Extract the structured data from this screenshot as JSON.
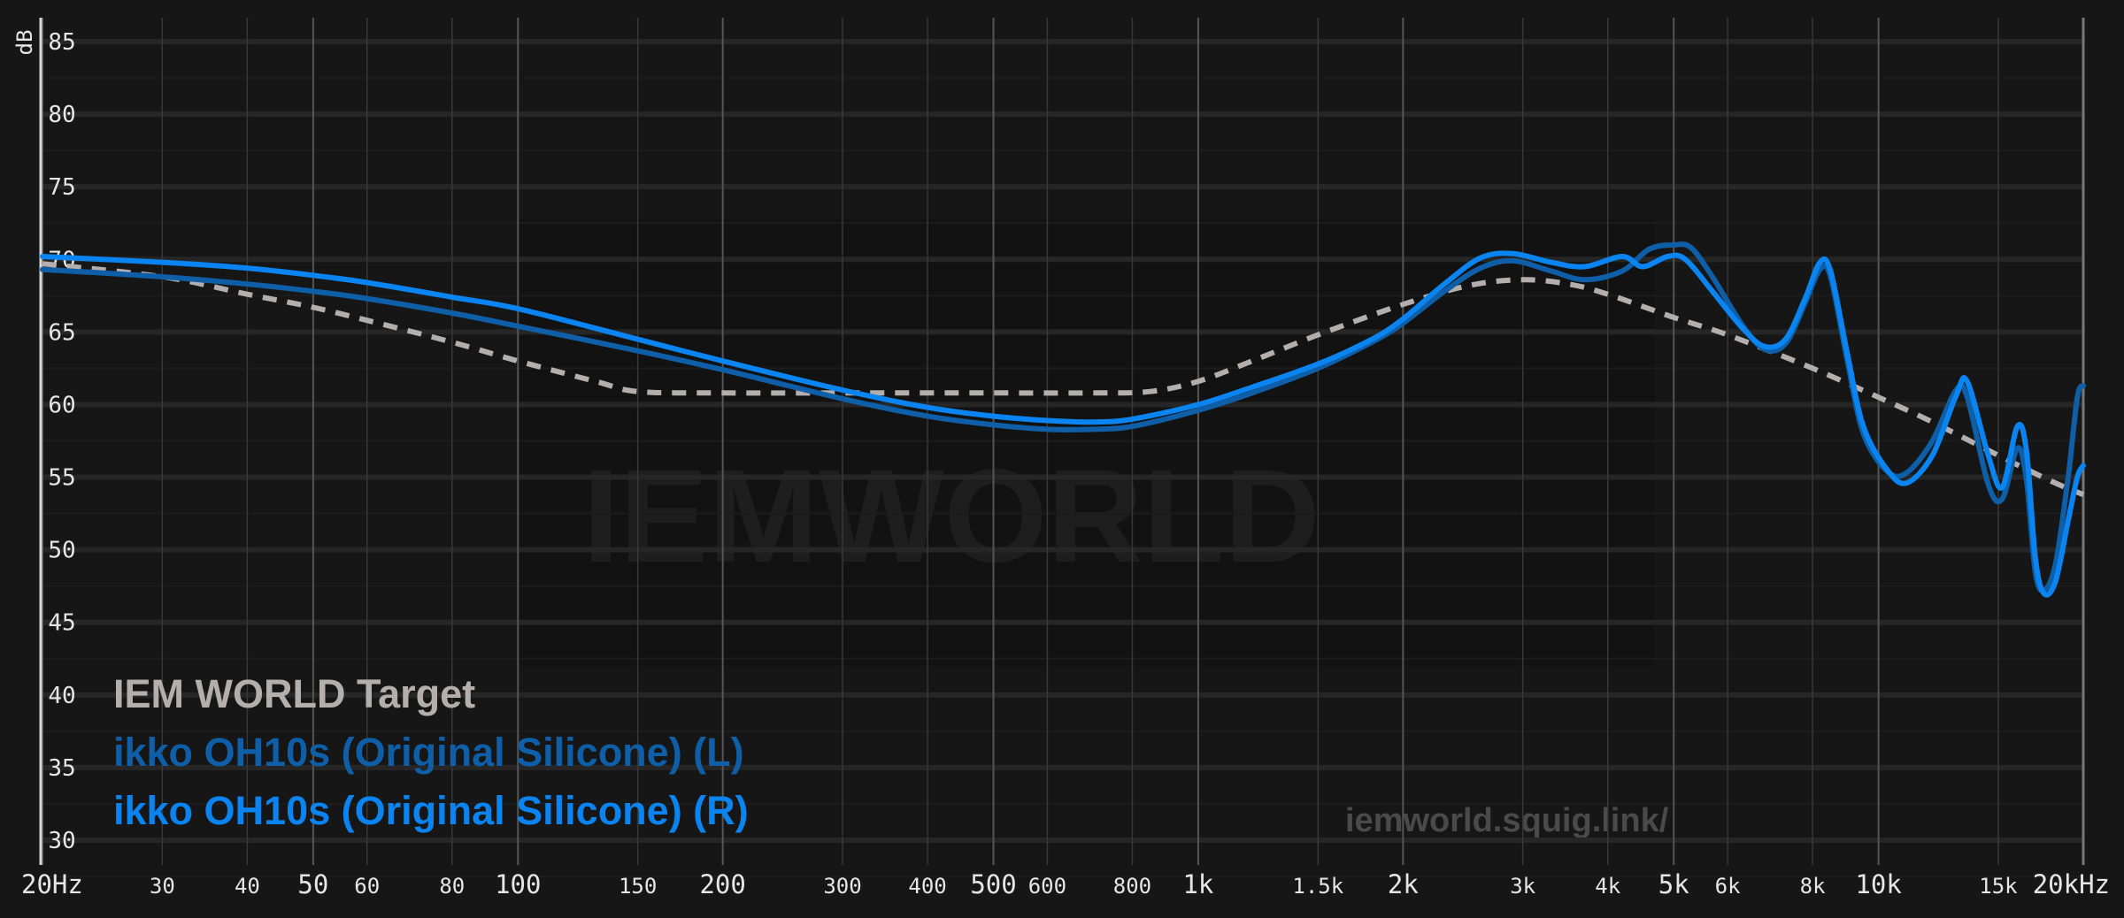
{
  "chart_data": {
    "type": "line",
    "xscale": "log",
    "xlim": [
      20,
      20000
    ],
    "ylim": [
      30,
      86
    ],
    "ylabel": "dB",
    "grid": true,
    "legend_position": "bottom-left",
    "y_ticks": [
      85,
      80,
      75,
      70,
      65,
      60,
      55,
      50,
      45,
      40,
      35,
      30
    ],
    "x_ticks": [
      {
        "v": 20,
        "label": "20Hz",
        "major": true
      },
      {
        "v": 30,
        "label": "30",
        "major": false
      },
      {
        "v": 40,
        "label": "40",
        "major": false
      },
      {
        "v": 50,
        "label": "50",
        "major": true
      },
      {
        "v": 60,
        "label": "60",
        "major": false
      },
      {
        "v": 80,
        "label": "80",
        "major": false
      },
      {
        "v": 100,
        "label": "100",
        "major": true
      },
      {
        "v": 150,
        "label": "150",
        "major": false
      },
      {
        "v": 200,
        "label": "200",
        "major": true
      },
      {
        "v": 300,
        "label": "300",
        "major": false
      },
      {
        "v": 400,
        "label": "400",
        "major": false
      },
      {
        "v": 500,
        "label": "500",
        "major": true
      },
      {
        "v": 600,
        "label": "600",
        "major": false
      },
      {
        "v": 800,
        "label": "800",
        "major": false
      },
      {
        "v": 1000,
        "label": "1k",
        "major": true
      },
      {
        "v": 1500,
        "label": "1.5k",
        "major": false
      },
      {
        "v": 2000,
        "label": "2k",
        "major": true
      },
      {
        "v": 3000,
        "label": "3k",
        "major": false
      },
      {
        "v": 4000,
        "label": "4k",
        "major": false
      },
      {
        "v": 5000,
        "label": "5k",
        "major": true
      },
      {
        "v": 6000,
        "label": "6k",
        "major": false
      },
      {
        "v": 8000,
        "label": "8k",
        "major": false
      },
      {
        "v": 10000,
        "label": "10k",
        "major": true
      },
      {
        "v": 15000,
        "label": "15k",
        "major": false
      },
      {
        "v": 20000,
        "label": "20kHz",
        "major": true
      }
    ],
    "series": [
      {
        "name": "IEM WORLD Target",
        "color": "#b4aeae",
        "dash": true,
        "points": [
          [
            20,
            69.7
          ],
          [
            30,
            68.8
          ],
          [
            40,
            67.6
          ],
          [
            50,
            66.7
          ],
          [
            60,
            65.8
          ],
          [
            80,
            64.3
          ],
          [
            100,
            63.0
          ],
          [
            130,
            61.6
          ],
          [
            150,
            60.9
          ],
          [
            200,
            60.8
          ],
          [
            300,
            60.8
          ],
          [
            500,
            60.8
          ],
          [
            700,
            60.8
          ],
          [
            850,
            60.9
          ],
          [
            1000,
            61.6
          ],
          [
            1200,
            63.0
          ],
          [
            1500,
            64.8
          ],
          [
            2000,
            66.9
          ],
          [
            2500,
            68.2
          ],
          [
            3000,
            68.6
          ],
          [
            3500,
            68.3
          ],
          [
            4000,
            67.6
          ],
          [
            5000,
            66.0
          ],
          [
            6000,
            64.8
          ],
          [
            8000,
            62.5
          ],
          [
            10000,
            60.5
          ],
          [
            12000,
            58.8
          ],
          [
            15000,
            56.5
          ],
          [
            18000,
            54.7
          ],
          [
            20000,
            53.8
          ]
        ]
      },
      {
        "name": "ikko OH10s (Original Silicone) (L)",
        "color": "#0e5fa8",
        "dash": false,
        "points": [
          [
            20,
            69.3
          ],
          [
            30,
            68.8
          ],
          [
            40,
            68.3
          ],
          [
            50,
            67.8
          ],
          [
            60,
            67.3
          ],
          [
            80,
            66.3
          ],
          [
            100,
            65.4
          ],
          [
            150,
            63.7
          ],
          [
            200,
            62.4
          ],
          [
            300,
            60.4
          ],
          [
            400,
            59.2
          ],
          [
            500,
            58.6
          ],
          [
            600,
            58.3
          ],
          [
            700,
            58.3
          ],
          [
            800,
            58.5
          ],
          [
            1000,
            59.6
          ],
          [
            1200,
            60.8
          ],
          [
            1500,
            62.5
          ],
          [
            1800,
            64.3
          ],
          [
            2000,
            65.6
          ],
          [
            2300,
            67.8
          ],
          [
            2600,
            69.4
          ],
          [
            2900,
            69.9
          ],
          [
            3300,
            69.2
          ],
          [
            3700,
            68.6
          ],
          [
            4200,
            69.2
          ],
          [
            4600,
            70.7
          ],
          [
            5000,
            71.0
          ],
          [
            5300,
            70.8
          ],
          [
            5700,
            68.8
          ],
          [
            6300,
            65.5
          ],
          [
            6800,
            63.8
          ],
          [
            7300,
            64.2
          ],
          [
            7800,
            67.0
          ],
          [
            8200,
            69.3
          ],
          [
            8500,
            68.8
          ],
          [
            9000,
            63.0
          ],
          [
            9500,
            58.0
          ],
          [
            10300,
            55.4
          ],
          [
            11000,
            55.3
          ],
          [
            12000,
            57.5
          ],
          [
            13000,
            61.0
          ],
          [
            13500,
            60.5
          ],
          [
            14500,
            54.5
          ],
          [
            15200,
            53.5
          ],
          [
            16000,
            57.0
          ],
          [
            16500,
            54.8
          ],
          [
            17000,
            48.5
          ],
          [
            17500,
            47.2
          ],
          [
            18200,
            49.0
          ],
          [
            19000,
            55.0
          ],
          [
            19600,
            60.5
          ],
          [
            20000,
            61.3
          ]
        ]
      },
      {
        "name": "ikko OH10s (Original Silicone) (R)",
        "color": "#0a84f0",
        "dash": false,
        "points": [
          [
            20,
            70.2
          ],
          [
            30,
            69.8
          ],
          [
            40,
            69.4
          ],
          [
            50,
            68.9
          ],
          [
            60,
            68.4
          ],
          [
            80,
            67.4
          ],
          [
            100,
            66.6
          ],
          [
            150,
            64.5
          ],
          [
            200,
            63.0
          ],
          [
            300,
            61.0
          ],
          [
            400,
            59.8
          ],
          [
            500,
            59.2
          ],
          [
            600,
            58.9
          ],
          [
            700,
            58.8
          ],
          [
            800,
            59.0
          ],
          [
            1000,
            60.0
          ],
          [
            1200,
            61.2
          ],
          [
            1500,
            62.8
          ],
          [
            1800,
            64.5
          ],
          [
            2000,
            65.9
          ],
          [
            2300,
            68.3
          ],
          [
            2600,
            70.1
          ],
          [
            2900,
            70.4
          ],
          [
            3300,
            69.8
          ],
          [
            3700,
            69.5
          ],
          [
            4200,
            70.2
          ],
          [
            4500,
            69.5
          ],
          [
            4900,
            70.2
          ],
          [
            5200,
            70.0
          ],
          [
            5700,
            67.8
          ],
          [
            6300,
            65.3
          ],
          [
            6800,
            64.0
          ],
          [
            7300,
            64.5
          ],
          [
            7800,
            67.3
          ],
          [
            8200,
            69.8
          ],
          [
            8500,
            69.2
          ],
          [
            9000,
            63.5
          ],
          [
            9500,
            58.5
          ],
          [
            10300,
            55.5
          ],
          [
            11000,
            54.6
          ],
          [
            12000,
            56.5
          ],
          [
            13000,
            60.6
          ],
          [
            13500,
            61.6
          ],
          [
            14500,
            56.5
          ],
          [
            15200,
            54.3
          ],
          [
            16000,
            58.5
          ],
          [
            16500,
            56.8
          ],
          [
            17000,
            49.5
          ],
          [
            17500,
            47.0
          ],
          [
            18200,
            47.8
          ],
          [
            19000,
            52.0
          ],
          [
            19600,
            55.0
          ],
          [
            20000,
            55.8
          ]
        ]
      }
    ]
  },
  "watermark": {
    "brand": "IEMWORLD",
    "url": "iemworld.squig.link/"
  }
}
